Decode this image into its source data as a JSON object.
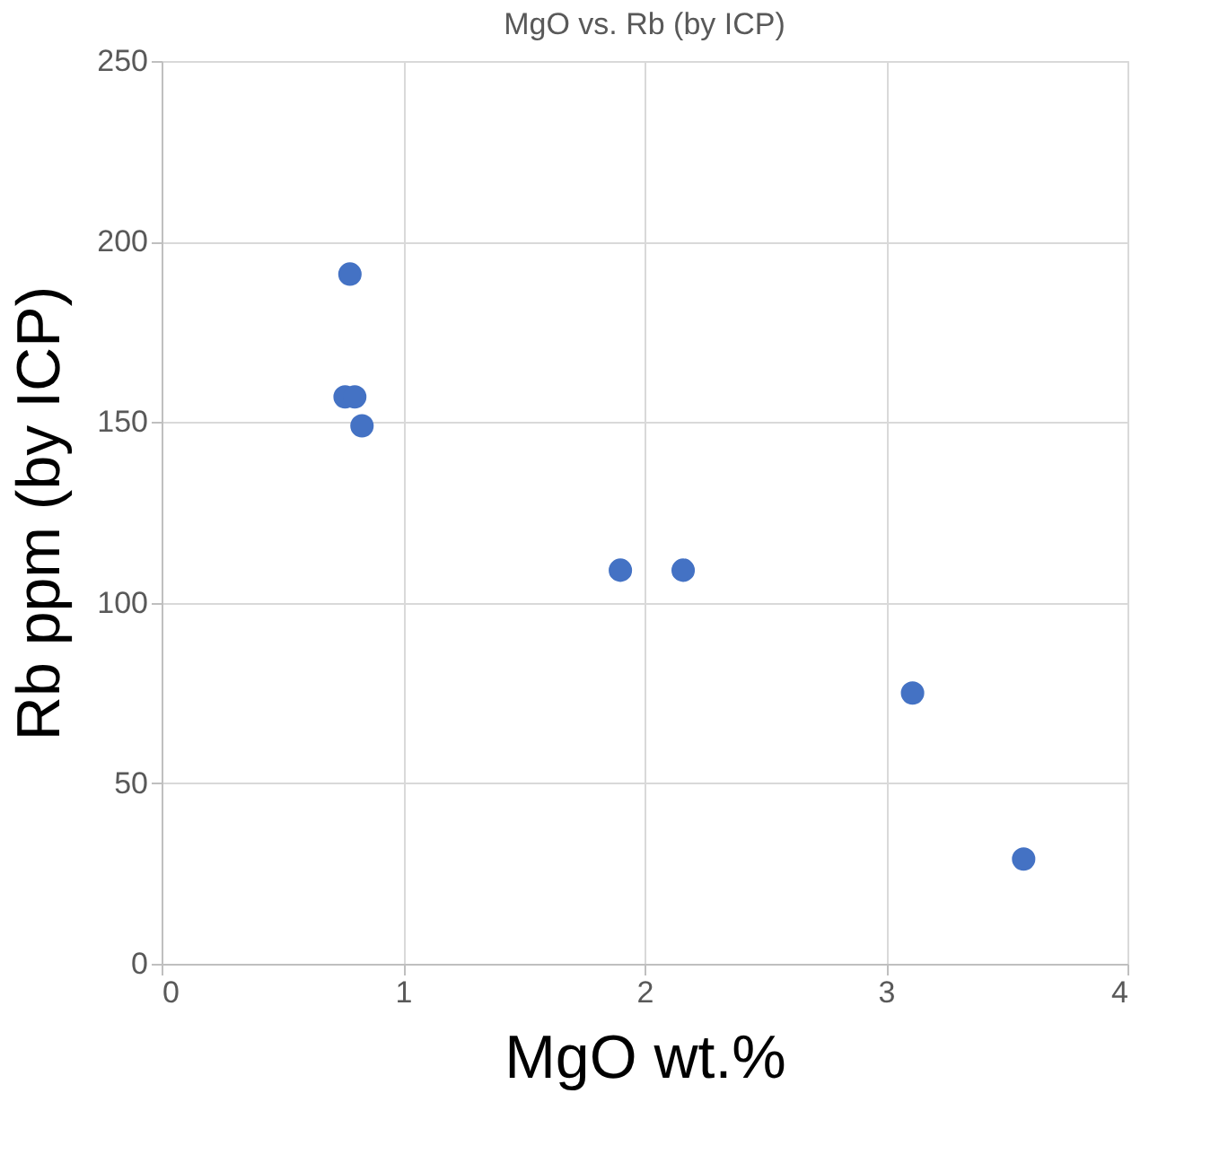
{
  "chart_data": {
    "type": "scatter",
    "title": "MgO vs. Rb (by ICP)",
    "xlabel": "MgO wt.%",
    "ylabel": "Rb ppm (by ICP)",
    "x": [
      0.78,
      0.76,
      0.8,
      0.83,
      1.9,
      2.16,
      3.11,
      3.57
    ],
    "series": [
      {
        "color": "#4472c4",
        "values": [
          191,
          157,
          157,
          149,
          109,
          109,
          75,
          29
        ]
      }
    ],
    "xlim": [
      0,
      4
    ],
    "ylim": [
      0,
      250
    ],
    "xticks": [
      0,
      1,
      2,
      3,
      4
    ],
    "yticks": [
      0,
      50,
      100,
      150,
      200,
      250
    ],
    "grid": true,
    "marker": "circle"
  }
}
